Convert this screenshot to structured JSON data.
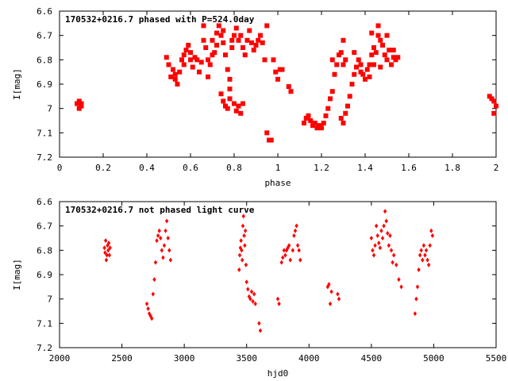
{
  "chart_data": [
    {
      "type": "scatter",
      "title": "170532+0216.7 phased with P=524.0day",
      "xlabel": "phase",
      "ylabel": "I[mag]",
      "xlim": [
        0,
        2
      ],
      "ylim": [
        7.2,
        6.6
      ],
      "y_inverted": true,
      "xticks": [
        "0",
        "0.2",
        "0.4",
        "0.6",
        "0.8",
        "1",
        "1.2",
        "1.4",
        "1.6",
        "1.8",
        "2"
      ],
      "yticks": [
        "6.6",
        "6.7",
        "6.8",
        "6.9",
        "7",
        "7.1",
        "7.2"
      ],
      "marker_color": "#ff0000",
      "marker": "square",
      "points": [
        [
          0.08,
          6.98
        ],
        [
          0.09,
          6.97
        ],
        [
          0.09,
          7.0
        ],
        [
          0.1,
          6.98
        ],
        [
          0.1,
          6.99
        ],
        [
          0.49,
          6.79
        ],
        [
          0.5,
          6.82
        ],
        [
          0.51,
          6.87
        ],
        [
          0.52,
          6.84
        ],
        [
          0.53,
          6.86
        ],
        [
          0.53,
          6.88
        ],
        [
          0.54,
          6.9
        ],
        [
          0.55,
          6.85
        ],
        [
          0.56,
          6.8
        ],
        [
          0.57,
          6.78
        ],
        [
          0.57,
          6.82
        ],
        [
          0.58,
          6.76
        ],
        [
          0.59,
          6.74
        ],
        [
          0.6,
          6.77
        ],
        [
          0.6,
          6.8
        ],
        [
          0.61,
          6.83
        ],
        [
          0.62,
          6.79
        ],
        [
          0.63,
          6.8
        ],
        [
          0.64,
          6.85
        ],
        [
          0.65,
          6.81
        ],
        [
          0.66,
          6.72
        ],
        [
          0.66,
          6.66
        ],
        [
          0.67,
          6.75
        ],
        [
          0.68,
          6.8
        ],
        [
          0.68,
          6.87
        ],
        [
          0.69,
          6.82
        ],
        [
          0.7,
          6.78
        ],
        [
          0.7,
          6.72
        ],
        [
          0.71,
          6.77
        ],
        [
          0.72,
          6.69
        ],
        [
          0.72,
          6.74
        ],
        [
          0.73,
          6.66
        ],
        [
          0.74,
          6.7
        ],
        [
          0.75,
          6.73
        ],
        [
          0.75,
          6.68
        ],
        [
          0.76,
          6.78
        ],
        [
          0.77,
          6.84
        ],
        [
          0.78,
          6.88
        ],
        [
          0.79,
          6.75
        ],
        [
          0.79,
          6.72
        ],
        [
          0.8,
          6.7
        ],
        [
          0.81,
          6.67
        ],
        [
          0.82,
          6.72
        ],
        [
          0.83,
          6.7
        ],
        [
          0.84,
          6.75
        ],
        [
          0.85,
          6.78
        ],
        [
          0.86,
          6.72
        ],
        [
          0.87,
          6.68
        ],
        [
          0.88,
          6.73
        ],
        [
          0.89,
          6.76
        ],
        [
          0.9,
          6.74
        ],
        [
          0.91,
          6.72
        ],
        [
          0.92,
          6.7
        ],
        [
          0.93,
          6.73
        ],
        [
          0.94,
          6.8
        ],
        [
          0.95,
          6.66
        ],
        [
          0.74,
          6.94
        ],
        [
          0.75,
          6.97
        ],
        [
          0.76,
          6.99
        ],
        [
          0.77,
          7.0
        ],
        [
          0.78,
          6.96
        ],
        [
          0.8,
          6.98
        ],
        [
          0.81,
          7.01
        ],
        [
          0.82,
          6.99
        ],
        [
          0.83,
          7.02
        ],
        [
          0.84,
          6.98
        ],
        [
          0.78,
          6.92
        ],
        [
          0.95,
          7.1
        ],
        [
          0.96,
          7.13
        ],
        [
          0.97,
          7.13
        ],
        [
          0.98,
          6.8
        ],
        [
          0.99,
          6.85
        ],
        [
          1.0,
          6.88
        ],
        [
          1.01,
          6.84
        ],
        [
          1.02,
          6.84
        ],
        [
          1.05,
          6.91
        ],
        [
          1.06,
          6.93
        ],
        [
          1.12,
          7.06
        ],
        [
          1.13,
          7.04
        ],
        [
          1.14,
          7.03
        ],
        [
          1.15,
          7.05
        ],
        [
          1.16,
          7.07
        ],
        [
          1.17,
          7.06
        ],
        [
          1.18,
          7.08
        ],
        [
          1.19,
          7.07
        ],
        [
          1.2,
          7.08
        ],
        [
          1.21,
          7.06
        ],
        [
          1.22,
          7.03
        ],
        [
          1.23,
          7.0
        ],
        [
          1.24,
          6.96
        ],
        [
          1.25,
          6.93
        ],
        [
          1.26,
          6.86
        ],
        [
          1.27,
          6.82
        ],
        [
          1.25,
          6.8
        ],
        [
          1.28,
          6.78
        ],
        [
          1.29,
          6.77
        ],
        [
          1.3,
          6.82
        ],
        [
          1.31,
          6.8
        ],
        [
          1.29,
          7.04
        ],
        [
          1.3,
          7.06
        ],
        [
          1.31,
          7.02
        ],
        [
          1.32,
          6.99
        ],
        [
          1.33,
          6.95
        ],
        [
          1.34,
          6.9
        ],
        [
          1.35,
          6.86
        ],
        [
          1.36,
          6.83
        ],
        [
          1.37,
          6.8
        ],
        [
          1.38,
          6.82
        ],
        [
          1.39,
          6.86
        ],
        [
          1.4,
          6.88
        ],
        [
          1.41,
          6.84
        ],
        [
          1.42,
          6.82
        ],
        [
          1.43,
          6.78
        ],
        [
          1.44,
          6.75
        ],
        [
          1.45,
          6.77
        ],
        [
          1.46,
          6.7
        ],
        [
          1.46,
          6.66
        ],
        [
          1.47,
          6.72
        ],
        [
          1.48,
          6.74
        ],
        [
          1.49,
          6.78
        ],
        [
          1.5,
          6.8
        ],
        [
          1.51,
          6.76
        ],
        [
          1.52,
          6.82
        ],
        [
          1.53,
          6.79
        ],
        [
          1.54,
          6.8
        ],
        [
          1.55,
          6.79
        ],
        [
          1.3,
          6.72
        ],
        [
          1.35,
          6.77
        ],
        [
          1.43,
          6.69
        ],
        [
          1.5,
          6.7
        ],
        [
          1.42,
          6.87
        ],
        [
          1.38,
          6.85
        ],
        [
          1.44,
          6.82
        ],
        [
          1.47,
          6.83
        ],
        [
          1.53,
          6.76
        ],
        [
          1.97,
          6.95
        ],
        [
          1.98,
          6.96
        ],
        [
          1.99,
          6.97
        ],
        [
          1.99,
          7.02
        ],
        [
          2.0,
          6.99
        ]
      ]
    },
    {
      "type": "scatter",
      "title": "170532+0216.7 not phased light curve",
      "xlabel": "hjd0",
      "ylabel": "I[mag]",
      "xlim": [
        2000,
        5500
      ],
      "ylim": [
        7.2,
        6.6
      ],
      "y_inverted": true,
      "xticks": [
        "2000",
        "2500",
        "3000",
        "3500",
        "4000",
        "4500",
        "5000",
        "5500"
      ],
      "yticks": [
        "6.6",
        "6.7",
        "6.8",
        "6.9",
        "7",
        "7.1",
        "7.2"
      ],
      "marker_color": "#ff0000",
      "marker": "diamond",
      "points": [
        [
          2360,
          6.79
        ],
        [
          2365,
          6.81
        ],
        [
          2370,
          6.76
        ],
        [
          2375,
          6.84
        ],
        [
          2380,
          6.82
        ],
        [
          2385,
          6.78
        ],
        [
          2390,
          6.8
        ],
        [
          2395,
          6.77
        ],
        [
          2400,
          6.82
        ],
        [
          2405,
          6.79
        ],
        [
          2700,
          7.02
        ],
        [
          2710,
          7.04
        ],
        [
          2720,
          7.06
        ],
        [
          2730,
          7.07
        ],
        [
          2740,
          7.08
        ],
        [
          2750,
          6.98
        ],
        [
          2760,
          6.92
        ],
        [
          2770,
          6.85
        ],
        [
          2780,
          6.76
        ],
        [
          2790,
          6.74
        ],
        [
          2800,
          6.72
        ],
        [
          2810,
          6.75
        ],
        [
          2820,
          6.8
        ],
        [
          2830,
          6.83
        ],
        [
          2840,
          6.78
        ],
        [
          2850,
          6.72
        ],
        [
          2860,
          6.68
        ],
        [
          2870,
          6.75
        ],
        [
          2880,
          6.8
        ],
        [
          2890,
          6.84
        ],
        [
          3440,
          6.88
        ],
        [
          3445,
          6.82
        ],
        [
          3450,
          6.79
        ],
        [
          3455,
          6.76
        ],
        [
          3460,
          6.8
        ],
        [
          3465,
          6.84
        ],
        [
          3470,
          6.7
        ],
        [
          3475,
          6.66
        ],
        [
          3480,
          6.74
        ],
        [
          3485,
          6.78
        ],
        [
          3490,
          6.72
        ],
        [
          3495,
          6.86
        ],
        [
          3500,
          6.93
        ],
        [
          3510,
          6.96
        ],
        [
          3520,
          6.99
        ],
        [
          3530,
          7.0
        ],
        [
          3540,
          6.97
        ],
        [
          3550,
          7.01
        ],
        [
          3560,
          6.98
        ],
        [
          3570,
          7.02
        ],
        [
          3600,
          7.1
        ],
        [
          3610,
          7.13
        ],
        [
          3750,
          7.0
        ],
        [
          3760,
          7.02
        ],
        [
          3780,
          6.85
        ],
        [
          3790,
          6.83
        ],
        [
          3800,
          6.8
        ],
        [
          3810,
          6.82
        ],
        [
          3820,
          6.8
        ],
        [
          3830,
          6.79
        ],
        [
          3840,
          6.78
        ],
        [
          3850,
          6.84
        ],
        [
          3870,
          6.8
        ],
        [
          3880,
          6.74
        ],
        [
          3890,
          6.72
        ],
        [
          3900,
          6.7
        ],
        [
          3910,
          6.78
        ],
        [
          3920,
          6.8
        ],
        [
          3930,
          6.84
        ],
        [
          4150,
          6.95
        ],
        [
          4160,
          6.94
        ],
        [
          4170,
          7.02
        ],
        [
          4180,
          6.97
        ],
        [
          4230,
          6.98
        ],
        [
          4240,
          7.0
        ],
        [
          4500,
          6.75
        ],
        [
          4510,
          6.8
        ],
        [
          4520,
          6.82
        ],
        [
          4530,
          6.78
        ],
        [
          4540,
          6.7
        ],
        [
          4550,
          6.74
        ],
        [
          4560,
          6.77
        ],
        [
          4570,
          6.79
        ],
        [
          4580,
          6.72
        ],
        [
          4590,
          6.75
        ],
        [
          4600,
          6.7
        ],
        [
          4610,
          6.64
        ],
        [
          4620,
          6.68
        ],
        [
          4630,
          6.73
        ],
        [
          4640,
          6.78
        ],
        [
          4650,
          6.74
        ],
        [
          4660,
          6.8
        ],
        [
          4670,
          6.85
        ],
        [
          4680,
          6.82
        ],
        [
          4700,
          6.86
        ],
        [
          4720,
          6.92
        ],
        [
          4740,
          6.95
        ],
        [
          4850,
          7.06
        ],
        [
          4860,
          7.0
        ],
        [
          4870,
          6.95
        ],
        [
          4880,
          6.88
        ],
        [
          4890,
          6.82
        ],
        [
          4900,
          6.8
        ],
        [
          4910,
          6.84
        ],
        [
          4920,
          6.78
        ],
        [
          4930,
          6.82
        ],
        [
          4940,
          6.8
        ],
        [
          4950,
          6.84
        ],
        [
          4960,
          6.86
        ],
        [
          4970,
          6.78
        ],
        [
          4980,
          6.72
        ],
        [
          4990,
          6.74
        ]
      ]
    }
  ]
}
